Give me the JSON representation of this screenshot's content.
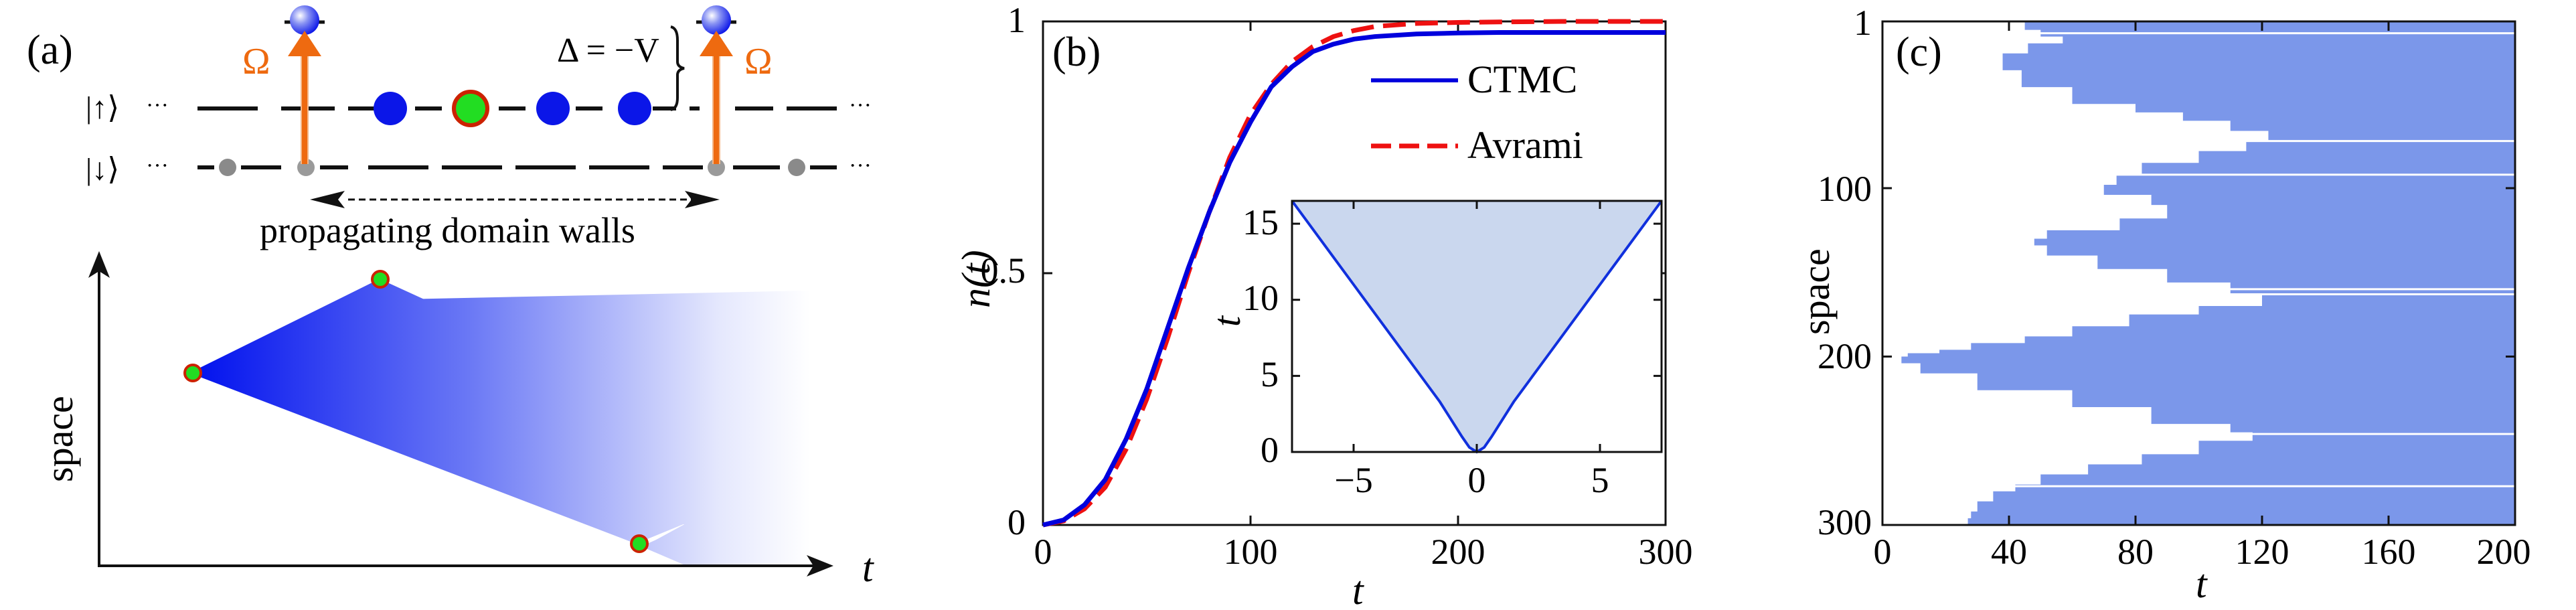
{
  "panel_a": {
    "label": "(a)",
    "state_up": "|↑⟩",
    "state_down": "|↓⟩",
    "ellipsis": "···",
    "omega": "Ω",
    "detuning": "Δ = −V",
    "walls_caption": "propagating domain walls",
    "ylabel": "space",
    "xlabel": "t",
    "colors": {
      "blue": "#0a14ee",
      "green": "#22dd22",
      "red_outline": "#cc2200",
      "orange": "#ee6a10",
      "gray": "#888888"
    }
  },
  "chart_data": [
    {
      "type": "line",
      "label": "(b)",
      "xlabel": "t",
      "ylabel": "n(t)",
      "xlim": [
        0,
        300
      ],
      "ylim": [
        0,
        1
      ],
      "xticks": [
        "0",
        "100",
        "200",
        "300"
      ],
      "yticks": [
        "0",
        "0.5",
        "1"
      ],
      "legend_position": "top-right",
      "series": [
        {
          "name": "CTMC",
          "color": "#0000dd",
          "style": "solid",
          "x": [
            0,
            10,
            20,
            30,
            40,
            50,
            60,
            70,
            80,
            90,
            100,
            110,
            120,
            130,
            140,
            150,
            160,
            180,
            200,
            220,
            250,
            300
          ],
          "y": [
            0,
            0.01,
            0.04,
            0.09,
            0.17,
            0.27,
            0.39,
            0.51,
            0.62,
            0.72,
            0.8,
            0.87,
            0.91,
            0.94,
            0.955,
            0.965,
            0.97,
            0.975,
            0.977,
            0.978,
            0.978,
            0.978
          ]
        },
        {
          "name": "Avrami",
          "color": "#ee1111",
          "style": "dashed",
          "x": [
            0,
            10,
            20,
            30,
            40,
            50,
            60,
            70,
            80,
            90,
            100,
            110,
            120,
            130,
            140,
            150,
            160,
            180,
            200,
            220,
            250,
            300
          ],
          "y": [
            0,
            0.008,
            0.032,
            0.075,
            0.15,
            0.25,
            0.37,
            0.5,
            0.62,
            0.73,
            0.815,
            0.875,
            0.92,
            0.95,
            0.97,
            0.982,
            0.99,
            0.996,
            0.998,
            0.999,
            1.0,
            1.0
          ]
        }
      ]
    },
    {
      "type": "area",
      "label": "inset",
      "xlabel": "",
      "ylabel": "t",
      "xlim": [
        -7.5,
        7.5
      ],
      "ylim": [
        0,
        16.5
      ],
      "xticks": [
        "−5",
        "0",
        "5"
      ],
      "yticks": [
        "0",
        "5",
        "10",
        "15"
      ],
      "fill_color": "#cad7ee",
      "line_color": "#1030dd",
      "x": [
        -7.5,
        -5,
        -3,
        -1.5,
        -0.6,
        -0.3,
        0,
        0.3,
        0.6,
        1.5,
        3,
        5,
        7.5
      ],
      "y": [
        16.5,
        11,
        6.6,
        3.3,
        1.0,
        0.3,
        0,
        0.3,
        1.0,
        3.3,
        6.6,
        11,
        16.5
      ]
    },
    {
      "type": "heatmap",
      "label": "(c)",
      "xlabel": "t",
      "ylabel": "space",
      "xlim": [
        0,
        200
      ],
      "ylim": [
        300,
        1
      ],
      "xticks": [
        "0",
        "40",
        "80",
        "120",
        "160",
        "200"
      ],
      "yticks": [
        "1",
        "100",
        "200",
        "300"
      ],
      "fill_color": "#7b97ea",
      "front": {
        "space": [
          1,
          6,
          10,
          14,
          20,
          30,
          40,
          50,
          55,
          60,
          66,
          72,
          78,
          85,
          92,
          98,
          104,
          110,
          118,
          125,
          130,
          134,
          140,
          148,
          156,
          163,
          170,
          175,
          182,
          188,
          192,
          196,
          198,
          200,
          204,
          210,
          220,
          230,
          240,
          245,
          250,
          258,
          264,
          270,
          276,
          280,
          286,
          292,
          296,
          300
        ],
        "t": [
          45,
          50,
          57,
          46,
          38,
          44,
          60,
          80,
          95,
          110,
          122,
          115,
          100,
          82,
          74,
          70,
          85,
          90,
          75,
          52,
          48,
          52,
          68,
          90,
          110,
          120,
          100,
          78,
          60,
          45,
          28,
          18,
          8,
          6,
          12,
          30,
          60,
          85,
          110,
          117,
          100,
          82,
          65,
          50,
          42,
          35,
          30,
          28,
          27,
          30
        ]
      },
      "gaps_space": [
        8,
        72,
        92,
        160,
        163,
        246,
        277
      ]
    }
  ]
}
